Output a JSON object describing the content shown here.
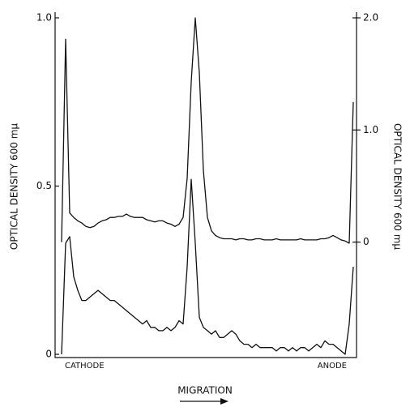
{
  "chart_data": {
    "type": "line",
    "ylabel": "OPTICAL DENSITY 600 mμ",
    "y2label": "OPTICAL DENSITY 600 mμ",
    "xlabel": "MIGRATION",
    "left_end_label": "CATHODE",
    "right_end_label": "ANODE",
    "ylim": [
      0,
      1.0
    ],
    "yticks": [
      0,
      {
        "value": 0.5,
        "label": "0.5"
      },
      {
        "value": 1,
        "label": "1.0"
      }
    ],
    "y2lim": [
      -1.0,
      2.0
    ],
    "y2ticks": [
      0,
      {
        "value": 1,
        "label": "1.0"
      },
      {
        "value": 2,
        "label": "2.0"
      }
    ],
    "grid": false,
    "series": [
      {
        "color": "#111",
        "axis": "y2",
        "values": [
          0.0,
          1.81,
          0.26,
          0.22,
          0.19,
          0.17,
          0.14,
          0.13,
          0.14,
          0.17,
          0.19,
          0.2,
          0.22,
          0.22,
          0.23,
          0.23,
          0.25,
          0.23,
          0.22,
          0.22,
          0.22,
          0.2,
          0.19,
          0.18,
          0.19,
          0.19,
          0.17,
          0.16,
          0.14,
          0.16,
          0.22,
          0.57,
          1.43,
          2.0,
          1.51,
          0.64,
          0.22,
          0.1,
          0.06,
          0.04,
          0.03,
          0.03,
          0.03,
          0.02,
          0.03,
          0.03,
          0.02,
          0.02,
          0.03,
          0.03,
          0.02,
          0.02,
          0.02,
          0.03,
          0.02,
          0.02,
          0.02,
          0.02,
          0.02,
          0.03,
          0.02,
          0.02,
          0.02,
          0.02,
          0.03,
          0.03,
          0.04,
          0.06,
          0.04,
          0.02,
          0.01,
          -0.01,
          1.25
        ]
      },
      {
        "color": "#111",
        "values": [
          0.0,
          0.33,
          0.35,
          0.23,
          0.19,
          0.16,
          0.16,
          0.17,
          0.18,
          0.19,
          0.18,
          0.17,
          0.16,
          0.16,
          0.15,
          0.14,
          0.13,
          0.12,
          0.11,
          0.1,
          0.09,
          0.1,
          0.08,
          0.08,
          0.07,
          0.07,
          0.08,
          0.07,
          0.08,
          0.1,
          0.09,
          0.26,
          0.52,
          0.33,
          0.11,
          0.08,
          0.07,
          0.06,
          0.07,
          0.05,
          0.05,
          0.06,
          0.07,
          0.06,
          0.04,
          0.03,
          0.03,
          0.02,
          0.03,
          0.02,
          0.02,
          0.02,
          0.02,
          0.01,
          0.02,
          0.02,
          0.01,
          0.02,
          0.01,
          0.02,
          0.02,
          0.01,
          0.02,
          0.03,
          0.02,
          0.04,
          0.03,
          0.03,
          0.02,
          0.01,
          0.0,
          0.09,
          0.26
        ]
      }
    ]
  }
}
